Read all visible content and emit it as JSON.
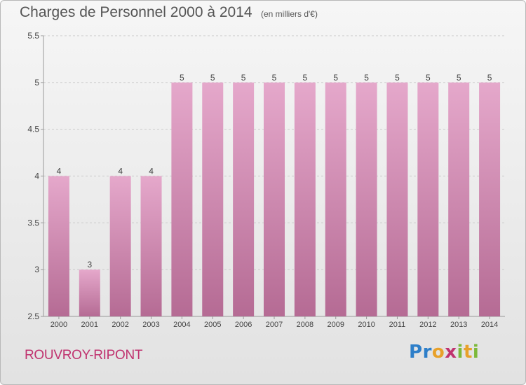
{
  "header": {
    "title": "Charges de Personnel 2000 à 2014",
    "subtitle": "(en milliers d'€)"
  },
  "footer": {
    "place": "ROUVROY-RIPONT",
    "logo_letters": [
      {
        "char": "P",
        "color": "#2e7fc9"
      },
      {
        "char": "r",
        "color": "#2e7fc9"
      },
      {
        "char": "o",
        "color": "#e8a12a"
      },
      {
        "char": "x",
        "color": "#c0336f"
      },
      {
        "char": "i",
        "color": "#7cb93a"
      },
      {
        "char": "t",
        "color": "#e8a12a"
      },
      {
        "char": "i",
        "color": "#7cb93a"
      }
    ]
  },
  "chart_data": {
    "type": "bar",
    "title": "Charges de Personnel 2000 à 2014",
    "subtitle": "(en milliers d'€)",
    "categories": [
      "2000",
      "2001",
      "2002",
      "2003",
      "2004",
      "2005",
      "2006",
      "2007",
      "2008",
      "2009",
      "2010",
      "2011",
      "2012",
      "2013",
      "2014"
    ],
    "values": [
      4,
      3,
      4,
      4,
      5,
      5,
      5,
      5,
      5,
      5,
      5,
      5,
      5,
      5,
      5
    ],
    "value_labels": [
      "4",
      "3",
      "4",
      "4",
      "5",
      "5",
      "5",
      "5",
      "5",
      "5",
      "5",
      "5",
      "5",
      "5",
      "5"
    ],
    "ylim": [
      2.5,
      5.5
    ],
    "yticks": [
      2.5,
      3,
      3.5,
      4,
      4.5,
      5,
      5.5
    ],
    "ytick_labels": [
      "2.5",
      "3",
      "3.5",
      "4",
      "4.5",
      "5",
      "5.5"
    ],
    "grid": true,
    "bar_color_top": "#e5a8cb",
    "bar_color_bottom": "#b56b94"
  }
}
